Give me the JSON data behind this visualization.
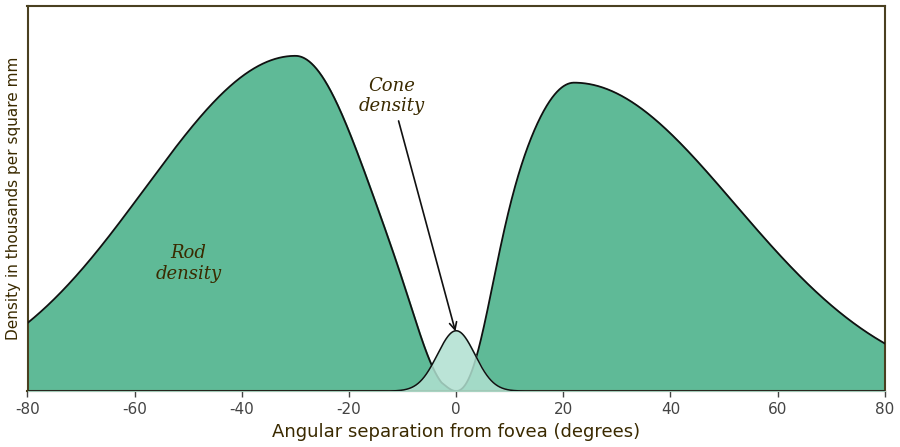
{
  "xlabel": "Angular separation from fovea (degrees)",
  "ylabel": "Density in thousands per square mm",
  "xlim": [
    -80,
    80
  ],
  "ylim": [
    0,
    1.15
  ],
  "fill_color": "#5fba97",
  "fill_alpha": 1.0,
  "edge_color": "#111111",
  "background_color": "#ffffff",
  "rod_label": "Rod\ndensity",
  "cone_label": "Cone\ndensity",
  "tick_color": "#444444",
  "axis_color": "#4a4020",
  "label_color": "#3a2a00",
  "xlabel_fontsize": 13,
  "ylabel_fontsize": 11,
  "annotation_fontsize": 13,
  "tick_fontsize": 11
}
